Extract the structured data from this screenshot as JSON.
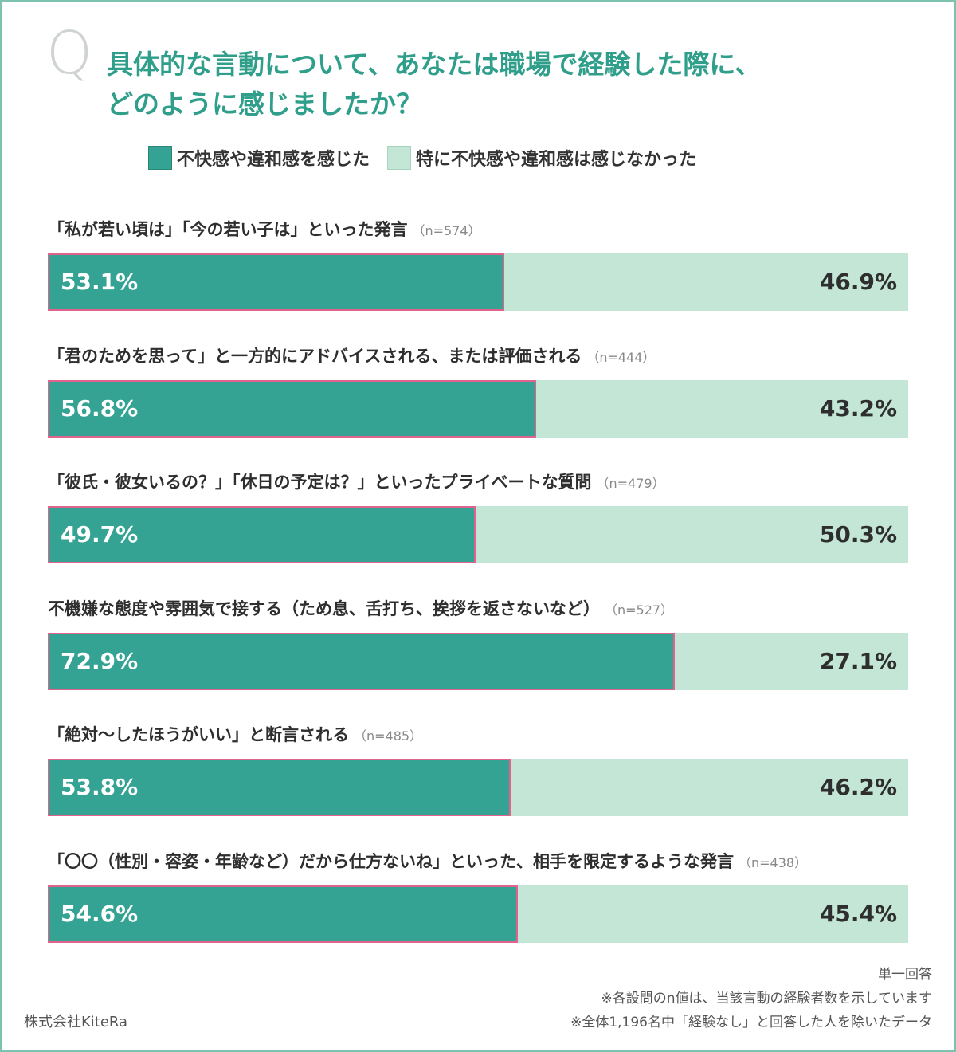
{
  "question": {
    "mark": "Q",
    "title": "具体的な言動について、あなたは職場で経験した際に、\nどのように感じましたか？"
  },
  "colors": {
    "felt": "#34a393",
    "not_felt": "#c3e6d6",
    "bar_outline": "#e2628e",
    "title": "#2f9e8a"
  },
  "chart_data": {
    "type": "bar",
    "orientation": "horizontal",
    "stacked": true,
    "legend_position": "top",
    "series": [
      {
        "name": "不快感や違和感を感じた"
      },
      {
        "name": "特に不快感や違和感は感じなかった"
      }
    ],
    "items": [
      {
        "label": "「私が若い頃は」「今の若い子は」といった発言",
        "n": "（n=574）",
        "felt": 53.1,
        "not_felt": 46.9,
        "felt_text": "53.1%",
        "not_felt_text": "46.9%"
      },
      {
        "label": "「君のためを思って」と一方的にアドバイスされる、または評価される",
        "n": "（n=444）",
        "felt": 56.8,
        "not_felt": 43.2,
        "felt_text": "56.8%",
        "not_felt_text": "43.2%"
      },
      {
        "label": "「彼氏・彼女いるの？」「休日の予定は？」といったプライベートな質問",
        "n": "（n=479）",
        "felt": 49.7,
        "not_felt": 50.3,
        "felt_text": "49.7%",
        "not_felt_text": "50.3%"
      },
      {
        "label": "不機嫌な態度や雰囲気で接する（ため息、舌打ち、挨拶を返さないなど）",
        "n": "（n=527）",
        "felt": 72.9,
        "not_felt": 27.1,
        "felt_text": "72.9%",
        "not_felt_text": "27.1%"
      },
      {
        "label": "「絶対〜したほうがいい」と断言される",
        "n": "（n=485）",
        "felt": 53.8,
        "not_felt": 46.2,
        "felt_text": "53.8%",
        "not_felt_text": "46.2%"
      },
      {
        "label": "「〇〇（性別・容姿・年齢など）だから仕方ないね」といった、相手を限定するような発言",
        "n": "（n=438）",
        "felt": 54.6,
        "not_felt": 45.4,
        "felt_text": "54.6%",
        "not_felt_text": "45.4%"
      }
    ]
  },
  "notes": [
    "単一回答",
    "※各設問のn値は、当該言動の経験者数を示しています",
    "※全体1,196名中「経験なし」と回答した人を除いたデータ"
  ],
  "company": "株式会社KiteRa"
}
